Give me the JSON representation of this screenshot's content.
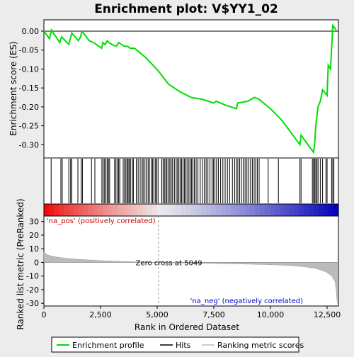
{
  "chart_data": {
    "type": "line",
    "title": "Enrichment plot: V$YY1_02",
    "xlabel": "Rank in Ordered Dataset",
    "xlim": [
      0,
      13000
    ],
    "x_ticks": [
      "0",
      "2,500",
      "5,000",
      "7,500",
      "10,000",
      "12,500"
    ],
    "x_tick_values": [
      0,
      2500,
      5000,
      7500,
      10000,
      12500
    ],
    "top_panel": {
      "ylabel": "Enrichment score (ES)",
      "ylim": [
        -0.335,
        0.03
      ],
      "y_ticks": [
        "0.00",
        "-0.05",
        "-0.10",
        "-0.15",
        "-0.20",
        "-0.25",
        "-0.30"
      ],
      "y_tick_values": [
        0,
        -0.05,
        -0.1,
        -0.15,
        -0.2,
        -0.25,
        -0.3
      ],
      "line_color": "#00dd00",
      "series": [
        {
          "x": [
            0,
            250,
            330,
            700,
            780,
            1100,
            1230,
            1520,
            1620,
            1680,
            2000,
            2200,
            2550,
            2600,
            2700,
            2800,
            2870,
            3000,
            3200,
            3300,
            3550,
            3700,
            3800,
            4000,
            4500,
            5049,
            5500,
            6000,
            6500,
            7000,
            7500,
            7600,
            8000,
            8500,
            8550,
            9000,
            9300,
            9500,
            10000,
            10500,
            11300,
            11350,
            11900,
            11950,
            12000,
            12100,
            12200,
            12300,
            12500,
            12550,
            12650,
            12700,
            12750,
            12900
          ],
          "y": [
            0.0,
            -0.02,
            0.003,
            -0.03,
            -0.015,
            -0.035,
            -0.005,
            -0.025,
            -0.015,
            0.0,
            -0.025,
            -0.03,
            -0.045,
            -0.03,
            -0.035,
            -0.025,
            -0.03,
            -0.035,
            -0.04,
            -0.03,
            -0.04,
            -0.04,
            -0.045,
            -0.045,
            -0.07,
            -0.105,
            -0.14,
            -0.16,
            -0.175,
            -0.18,
            -0.19,
            -0.185,
            -0.195,
            -0.205,
            -0.19,
            -0.185,
            -0.175,
            -0.18,
            -0.205,
            -0.235,
            -0.3,
            -0.275,
            -0.32,
            -0.3,
            -0.25,
            -0.2,
            -0.185,
            -0.155,
            -0.17,
            -0.09,
            -0.1,
            -0.045,
            0.015,
            0.003
          ]
        }
      ]
    },
    "hits": [
      320,
      750,
      810,
      1100,
      1180,
      1230,
      1500,
      1650,
      1700,
      2100,
      2250,
      2560,
      2620,
      2680,
      2740,
      2800,
      2850,
      2900,
      3120,
      3180,
      3240,
      3300,
      3350,
      3500,
      3560,
      3620,
      3680,
      3720,
      3770,
      3820,
      3900,
      3950,
      4080,
      4160,
      4250,
      4330,
      4380,
      4460,
      4520,
      4600,
      4660,
      4740,
      4800,
      4860,
      4930,
      4980,
      5040,
      5200,
      5260,
      5320,
      5380,
      5430,
      5500,
      5560,
      5620,
      5680,
      5760,
      5840,
      5900,
      5960,
      6020,
      6080,
      6140,
      6200,
      6260,
      6320,
      6400,
      6460,
      6520,
      6580,
      6640,
      6720,
      6800,
      6900,
      7000,
      7080,
      7160,
      7240,
      7330,
      7420,
      7480,
      7550,
      7620,
      7700,
      7800,
      7900,
      8000,
      8100,
      8200,
      8320,
      8420,
      8500,
      8560,
      8640,
      8720,
      8800,
      8880,
      8960,
      9040,
      9120,
      9200,
      9280,
      9350,
      9420,
      9500,
      9900,
      10350,
      11300,
      11350,
      11850,
      11900,
      11950,
      12000,
      12050,
      12100,
      12200,
      12300,
      12450,
      12500,
      12700,
      12750,
      12800
    ],
    "rank_metric_panel": {
      "ylabel": "Ranked list metric (PreRanked)",
      "ylim": [
        -32,
        34
      ],
      "y_ticks": [
        "30",
        "20",
        "10",
        "0",
        "-10",
        "-20",
        "-30"
      ],
      "y_tick_values": [
        30,
        20,
        10,
        0,
        -10,
        -20,
        -30
      ],
      "metric_curve": {
        "x": [
          0,
          100,
          300,
          600,
          1000,
          1500,
          2000,
          2500,
          3000,
          3500,
          4000,
          4500,
          5049,
          5500,
          6000,
          7000,
          8000,
          9000,
          9800,
          10500,
          11000,
          11500,
          12000,
          12300,
          12500,
          12700,
          12850,
          12900,
          12950
        ],
        "y": [
          8,
          6,
          4.8,
          3.8,
          3,
          2.3,
          1.8,
          1.3,
          1.0,
          0.7,
          0.4,
          0.2,
          0.0,
          -0.2,
          -0.4,
          -0.7,
          -1.0,
          -1.3,
          -1.6,
          -2.0,
          -2.5,
          -3.2,
          -4.5,
          -6,
          -7.5,
          -10,
          -14,
          -20,
          -30
        ]
      },
      "zero_cross_label": "Zero cross at 5049",
      "zero_cross_value": 5049,
      "pos_label": "'na_pos' (positively correlated)",
      "neg_label": "'na_neg' (negatively correlated)"
    },
    "legend": [
      "Enrichment profile",
      "Hits",
      "Ranking metric scores"
    ],
    "colors": {
      "es_line": "#00dd00",
      "hit": "#000000",
      "metric_fill": "#bbbbbb",
      "pos_text": "#cc0000",
      "neg_text": "#0000cc",
      "bar_red": "#ee0000",
      "bar_blue": "#0000bb"
    }
  }
}
